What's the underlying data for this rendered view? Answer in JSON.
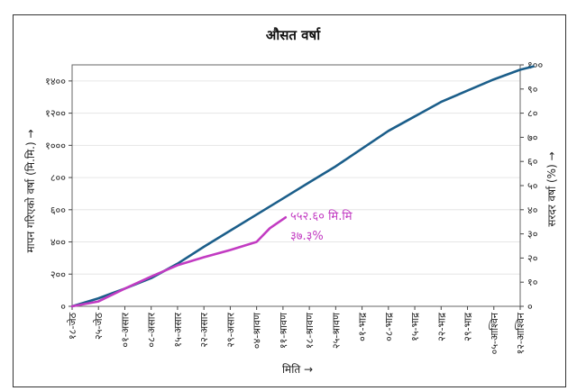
{
  "chart_data": {
    "type": "line",
    "title": "औसत वर्षा",
    "xlabel": "मिति →",
    "ylabel_left": "मापन गरिएको वर्षा (मि.मि.) →",
    "ylabel_right": "सरदर वर्षा (%) →",
    "x_ticks": [
      "१८-जेठ",
      "२५-जेठ",
      "०१-असार",
      "०८-असार",
      "१५-असार",
      "२२-असार",
      "२९-असार",
      "०४-श्रावण",
      "११-श्रावण",
      "१८-श्रावण",
      "२५-श्रावण",
      "०१-भाद्र",
      "०८-भाद्र",
      "१५-भाद्र",
      "२२-भाद्र",
      "२९-भाद्र",
      "०५-आश्विन",
      "१२-आश्विन"
    ],
    "y_left_ticks": [
      "०",
      "२००",
      "४००",
      "६००",
      "८००",
      "१०००",
      "१२००",
      "१४००"
    ],
    "y_left_values": [
      0,
      200,
      400,
      600,
      800,
      1000,
      1200,
      1400
    ],
    "y_right_ticks": [
      "०",
      "१०",
      "२०",
      "३०",
      "४०",
      "५०",
      "६०",
      "७०",
      "८०",
      "९०",
      "१००"
    ],
    "y_right_values": [
      0,
      10,
      20,
      30,
      40,
      50,
      60,
      70,
      80,
      90,
      100
    ],
    "ylim_left": [
      0,
      1500
    ],
    "ylim_right": [
      0,
      100
    ],
    "series": [
      {
        "color": "#1b5e8a",
        "x": [
          0,
          1,
          2,
          3,
          4,
          5,
          6,
          7,
          8,
          9,
          10,
          11,
          12,
          13,
          14,
          15,
          16,
          17,
          17.5
        ],
        "y": [
          0,
          50,
          110,
          175,
          265,
          370,
          470,
          570,
          670,
          770,
          870,
          980,
          1090,
          1180,
          1270,
          1340,
          1410,
          1470,
          1490
        ]
      },
      {
        "color": "#c23bc2",
        "x": [
          0,
          1,
          2,
          3,
          4,
          5,
          6,
          7,
          7.5,
          8.1
        ],
        "y": [
          0,
          30,
          110,
          185,
          255,
          305,
          350,
          400,
          485,
          552.6
        ]
      }
    ],
    "annotation": {
      "line1": "५५२.६० मि.मि",
      "line2": "३७.३%"
    }
  }
}
